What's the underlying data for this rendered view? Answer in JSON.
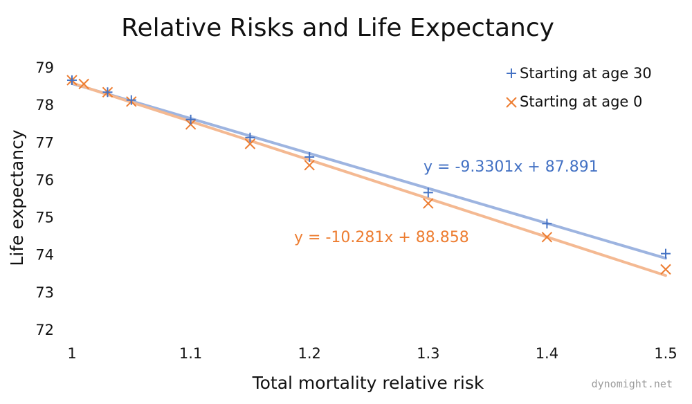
{
  "chart_data": {
    "type": "scatter",
    "title": "Relative Risks and Life Expectancy",
    "xlabel": "Total mortality relative risk",
    "ylabel": "Life expectancy",
    "xlim": [
      1,
      1.5
    ],
    "ylim": [
      72,
      79
    ],
    "x_ticks": [
      "1",
      "1.1",
      "1.2",
      "1.3",
      "1.4",
      "1.5"
    ],
    "y_ticks": [
      "72",
      "73",
      "74",
      "75",
      "76",
      "77",
      "78",
      "79"
    ],
    "grid": false,
    "legend_position": "top-right",
    "series": [
      {
        "name": "Starting at age 30",
        "marker": "plus",
        "color": "#4472c4",
        "line_color": "#9db4e0",
        "points": [
          {
            "x": 1.0,
            "y": 78.65
          },
          {
            "x": 1.03,
            "y": 78.33
          },
          {
            "x": 1.05,
            "y": 78.12
          },
          {
            "x": 1.1,
            "y": 77.6
          },
          {
            "x": 1.15,
            "y": 77.12
          },
          {
            "x": 1.2,
            "y": 76.6
          },
          {
            "x": 1.3,
            "y": 75.65
          },
          {
            "x": 1.4,
            "y": 74.82
          },
          {
            "x": 1.5,
            "y": 74.02
          }
        ],
        "trendline": {
          "slope": -9.3301,
          "intercept": 87.891,
          "label": "y = -9.3301x + 87.891"
        }
      },
      {
        "name": "Starting at age 0",
        "marker": "x",
        "color": "#ed7d31",
        "line_color": "#f4b992",
        "points": [
          {
            "x": 1.0,
            "y": 78.65
          },
          {
            "x": 1.01,
            "y": 78.55
          },
          {
            "x": 1.03,
            "y": 78.33
          },
          {
            "x": 1.05,
            "y": 78.08
          },
          {
            "x": 1.1,
            "y": 77.47
          },
          {
            "x": 1.15,
            "y": 76.95
          },
          {
            "x": 1.2,
            "y": 76.38
          },
          {
            "x": 1.3,
            "y": 75.36
          },
          {
            "x": 1.4,
            "y": 74.46
          },
          {
            "x": 1.5,
            "y": 73.6
          }
        ],
        "trendline": {
          "slope": -10.281,
          "intercept": 88.858,
          "label": "y = -10.281x + 88.858"
        }
      }
    ]
  },
  "watermark": "dynomight.net"
}
